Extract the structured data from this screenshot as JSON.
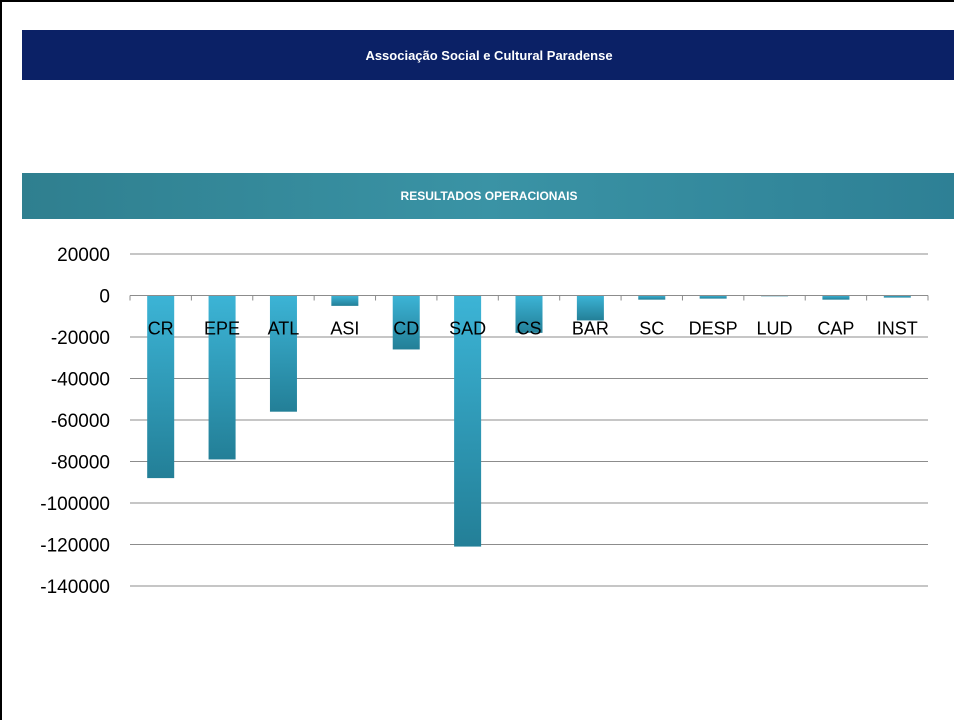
{
  "header": {
    "title": "Associação Social e Cultural Paradense"
  },
  "section": {
    "title": "RESULTADOS OPERACIONAIS"
  },
  "colors": {
    "header_band": "#0b2166",
    "section_band": "#3a93a5",
    "bar_light": "#3cb4d6",
    "bar_dark": "#237f97",
    "gridline": "#8c8c8c"
  },
  "chart_data": {
    "type": "bar",
    "title": "",
    "xlabel": "",
    "ylabel": "",
    "categories": [
      "CR",
      "EPE",
      "ATL",
      "ASI",
      "CD",
      "SAD",
      "CS",
      "BAR",
      "SC",
      "DESP",
      "LUD",
      "CAP",
      "INST"
    ],
    "values": [
      -88000,
      -79000,
      -56000,
      -5000,
      -26000,
      -121000,
      -18000,
      -12000,
      -2000,
      -1500,
      0,
      -2000,
      -1000
    ],
    "ylim": [
      -140000,
      20000
    ],
    "yticks": [
      20000,
      0,
      -20000,
      -40000,
      -60000,
      -80000,
      -100000,
      -120000,
      -140000
    ],
    "grid": true,
    "legend": "none"
  }
}
